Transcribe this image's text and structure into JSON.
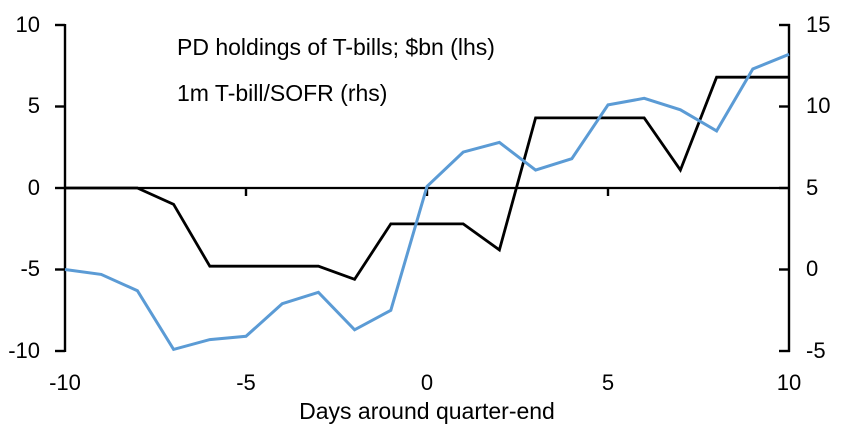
{
  "chart_data": {
    "type": "line",
    "title": "",
    "xlabel": "Days around quarter-end",
    "grid": false,
    "legend_position": "top-left",
    "x": [
      -10,
      -9,
      -8,
      -7,
      -6,
      -5,
      -4,
      -3,
      -2,
      -1,
      0,
      1,
      2,
      3,
      4,
      5,
      6,
      7,
      8,
      9,
      10
    ],
    "series": [
      {
        "name": "PD holdings of T-bills; $bn (lhs)",
        "axis": "left",
        "color": "#000000",
        "values": [
          0,
          0,
          0,
          -1,
          -4.8,
          -4.8,
          -4.8,
          -4.8,
          -5.6,
          -2.2,
          -2.2,
          -2.2,
          -3.8,
          4.3,
          4.3,
          4.3,
          4.3,
          1.1,
          6.8,
          6.8,
          6.8
        ]
      },
      {
        "name": "1m T-bill/SOFR (rhs)",
        "axis": "right",
        "color": "#5B9BD5",
        "values": [
          0,
          -0.3,
          -1.3,
          -4.9,
          -4.3,
          -4.1,
          -2.1,
          -1.4,
          -3.7,
          -2.5,
          5.1,
          7.2,
          7.8,
          6.1,
          6.8,
          10.1,
          10.5,
          9.8,
          8.5,
          12.3,
          13.2
        ]
      }
    ],
    "axes": {
      "left": {
        "min": -10,
        "max": 10,
        "ticks": [
          10,
          5,
          0,
          -5,
          -10
        ]
      },
      "right": {
        "min": -5,
        "max": 15,
        "ticks": [
          15,
          10,
          5,
          0,
          -5
        ]
      },
      "x": {
        "min": -10,
        "max": 10,
        "ticks": [
          -10,
          -5,
          0,
          5,
          10
        ],
        "inner_ticks": [
          -5,
          0,
          5
        ]
      }
    }
  }
}
